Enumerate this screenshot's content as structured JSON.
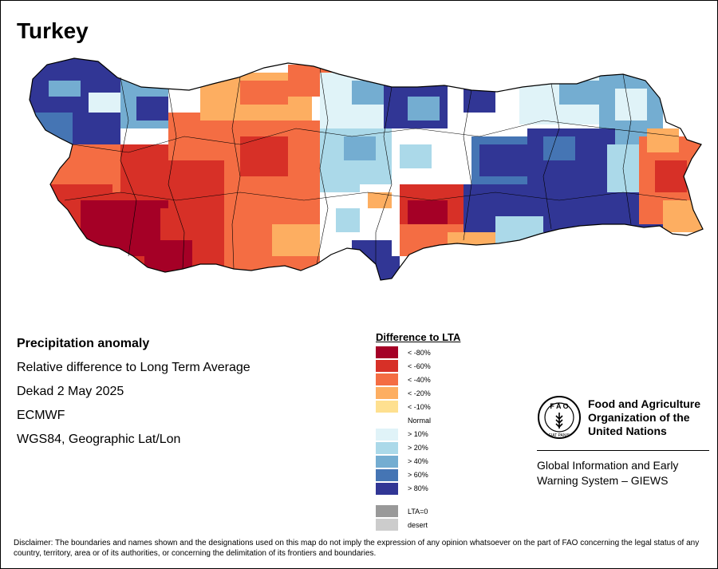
{
  "map": {
    "title": "Turkey",
    "info_lines": [
      "Precipitation anomaly",
      "Relative difference to Long Term Average",
      "Dekad 2 May 2025",
      "ECMWF",
      "WGS84, Geographic Lat/Lon"
    ],
    "colors": {
      "lt80": "#a50026",
      "lt60": "#d73027",
      "lt40": "#f46d43",
      "lt20": "#fdae61",
      "lt10": "#fee090",
      "normal": "#ffffff",
      "gt10": "#e0f3f8",
      "gt20": "#abd9e9",
      "gt40": "#74add1",
      "gt60": "#4575b4",
      "gt80": "#313695",
      "lta0": "#999999",
      "desert": "#cccccc"
    }
  },
  "legend": {
    "title": "Difference to LTA",
    "items": [
      {
        "label": "< -80%",
        "color": "#a50026"
      },
      {
        "label": "< -60%",
        "color": "#d73027"
      },
      {
        "label": "< -40%",
        "color": "#f46d43"
      },
      {
        "label": "< -20%",
        "color": "#fdae61"
      },
      {
        "label": "< -10%",
        "color": "#fee090"
      },
      {
        "label": "Normal",
        "color": "#ffffff"
      },
      {
        "label": "> 10%",
        "color": "#e0f3f8"
      },
      {
        "label": "> 20%",
        "color": "#abd9e9"
      },
      {
        "label": "> 40%",
        "color": "#74add1"
      },
      {
        "label": "> 60%",
        "color": "#4575b4"
      },
      {
        "label": "> 80%",
        "color": "#313695"
      }
    ],
    "extra": [
      {
        "label": "LTA=0",
        "color": "#999999"
      },
      {
        "label": "desert",
        "color": "#cccccc"
      }
    ]
  },
  "org": {
    "logo_text": "FAO",
    "logo_motto": "FIAT PANIS",
    "name_lines": [
      "Food and Agriculture",
      "Organization of the",
      "United Nations"
    ],
    "system_lines": [
      "Global Information and Early",
      "Warning System – GIEWS"
    ]
  },
  "disclaimer": "Disclaimer: The boundaries and names shown and the designations used on this map do not imply the expression of any opinion whatsoever on the part of FAO concerning the legal status of any country, territory, area or of its authorities, or concerning the delimitation of its frontiers and boundaries."
}
